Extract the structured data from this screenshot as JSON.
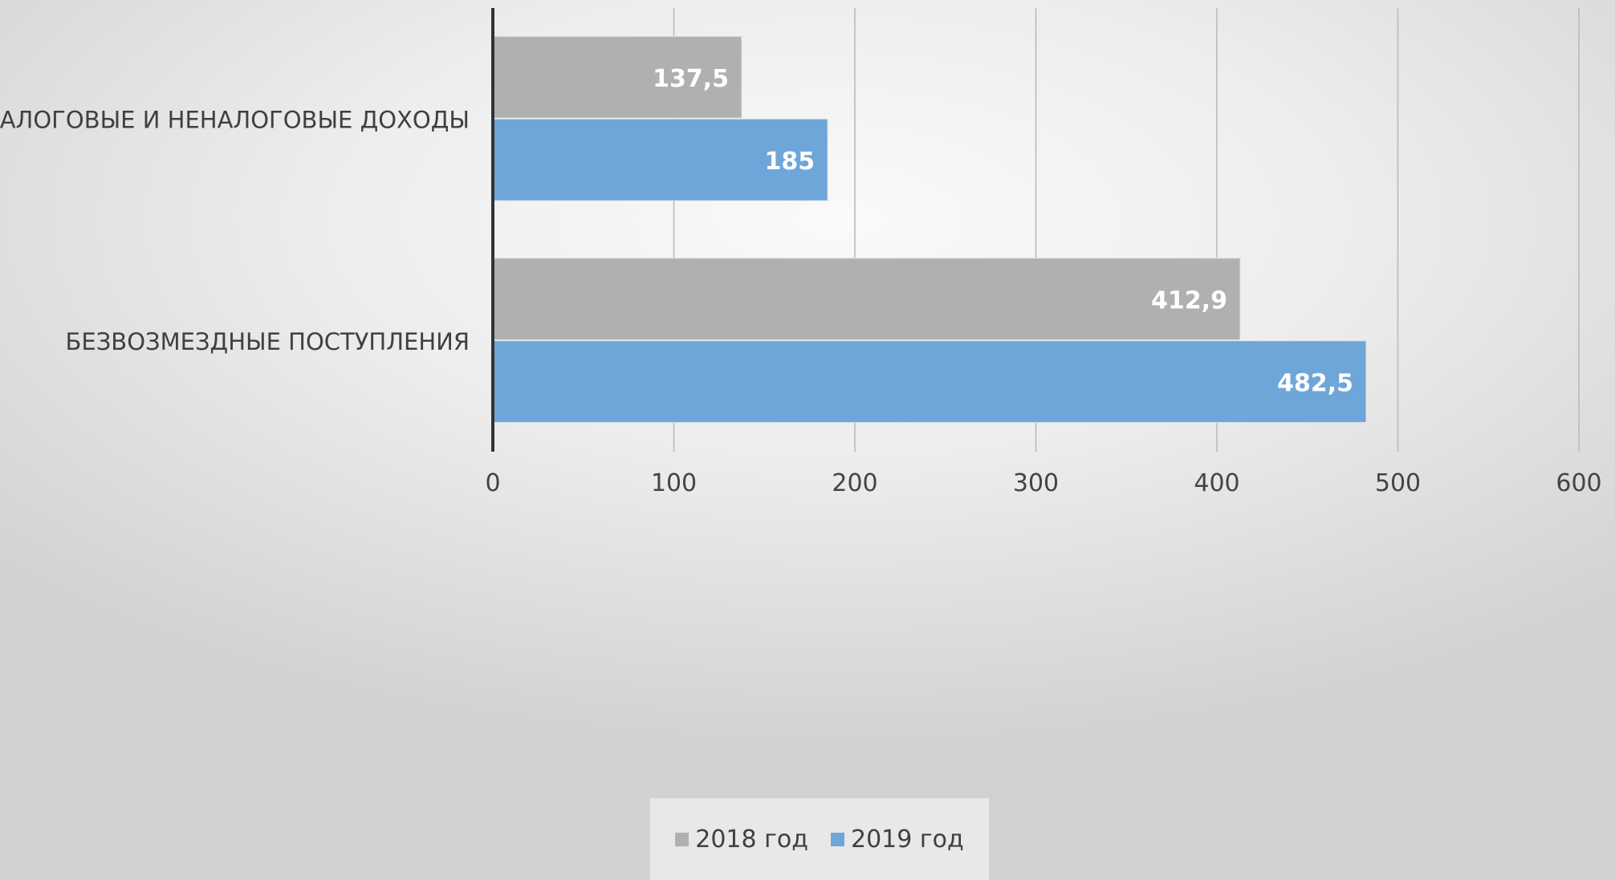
{
  "chart_data": {
    "type": "bar",
    "orientation": "horizontal",
    "categories": [
      "НАЛОГОВЫЕ И НЕНАЛОГОВЫЕ ДОХОДЫ",
      "БЕЗВОЗМЕЗДНЫЕ ПОСТУПЛЕНИЯ"
    ],
    "series": [
      {
        "name": "2018 год",
        "values": [
          137.5,
          412.9
        ],
        "labels": [
          "137,5",
          "412,9"
        ],
        "color": "#b0b0b0"
      },
      {
        "name": "2019 год",
        "values": [
          185,
          482.5
        ],
        "labels": [
          "185",
          "482,5"
        ],
        "color": "#6fa6d9"
      }
    ],
    "xlim": [
      0,
      600
    ],
    "xticks": [
      0,
      100,
      200,
      300,
      400,
      500,
      600
    ],
    "title": "",
    "xlabel": "",
    "ylabel": "",
    "grid": "vertical",
    "legend_position": "bottom"
  }
}
